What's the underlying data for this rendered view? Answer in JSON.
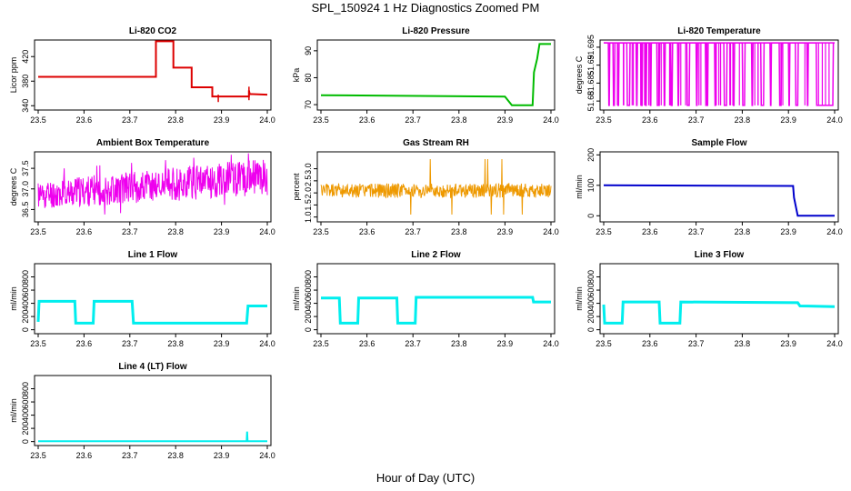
{
  "title": "SPL_150924  1 Hz Diagnostics Zoomed PM",
  "xlabel": "Hour of Day (UTC)",
  "colors": {
    "red": "#dd0000",
    "green": "#00bb00",
    "magenta": "#ee00ee",
    "orange": "#ee9900",
    "blue": "#0000cc",
    "cyan": "#00eeee"
  },
  "chart_data": [
    {
      "id": "co2",
      "type": "line",
      "title": "Li-820 CO2",
      "ylabel": "Licor ppm",
      "color": "red",
      "xlim": [
        23.5,
        24.0
      ],
      "xticks": [
        23.5,
        23.6,
        23.7,
        23.8,
        23.9,
        24.0
      ],
      "ylim": [
        333,
        447
      ],
      "yticks": [
        340,
        380,
        420
      ],
      "series": [
        {
          "name": "CO2",
          "x": [
            23.5,
            23.757,
            23.757,
            23.795,
            23.795,
            23.835,
            23.835,
            23.88,
            23.88,
            23.96,
            23.96,
            23.962,
            23.962,
            24.0
          ],
          "y": [
            387,
            387,
            445,
            445,
            402,
            402,
            370,
            370,
            355,
            355,
            365,
            358,
            359,
            358
          ]
        }
      ],
      "spikes": [
        {
          "x": 23.96,
          "lo": 349,
          "hi": 371
        },
        {
          "x": 23.893,
          "lo": 346,
          "hi": 358
        }
      ]
    },
    {
      "id": "pressure",
      "type": "line",
      "title": "Li-820 Pressure",
      "ylabel": "kPa",
      "color": "green",
      "xlim": [
        23.5,
        24.0
      ],
      "xticks": [
        23.5,
        23.6,
        23.7,
        23.8,
        23.9,
        24.0
      ],
      "ylim": [
        68,
        94
      ],
      "yticks": [
        70,
        80,
        90
      ],
      "series": [
        {
          "name": "Pressure",
          "x": [
            23.5,
            23.9,
            23.915,
            23.96,
            23.963,
            23.97,
            23.975,
            24.0
          ],
          "y": [
            73.5,
            73.0,
            69.8,
            69.8,
            82,
            87,
            92.5,
            92.5
          ]
        }
      ]
    },
    {
      "id": "licor_temp",
      "type": "line",
      "title": "Li-820 Temperature",
      "ylabel": "degrees C",
      "color": "magenta",
      "xlim": [
        23.5,
        24.0
      ],
      "xticks": [
        23.5,
        23.6,
        23.7,
        23.8,
        23.9,
        24.0
      ],
      "ylim": [
        51.6775,
        51.697
      ],
      "yticks": [
        51.68,
        51.685,
        51.69,
        51.695
      ],
      "series": [
        {
          "name": "Temperature",
          "binary": true,
          "high": 51.6962,
          "low": 51.6788,
          "x_transitions": [
            23.51,
            23.512,
            23.52,
            23.523,
            23.53,
            23.532,
            23.55,
            23.556,
            23.57,
            23.572,
            23.58,
            23.583,
            23.59,
            23.592,
            23.6,
            23.602,
            23.615,
            23.62,
            23.63,
            23.632,
            23.645,
            23.648,
            23.66,
            23.662,
            23.68,
            23.685,
            23.7,
            23.702,
            23.72,
            23.725,
            23.74,
            23.742,
            23.76,
            23.766,
            23.78,
            23.782,
            23.8,
            23.805,
            23.82,
            23.822,
            23.84,
            23.846,
            23.86,
            23.862,
            23.88,
            23.884,
            23.9,
            23.902,
            23.915,
            23.92,
            23.94,
            23.942,
            23.96,
            23.996
          ]
        }
      ]
    },
    {
      "id": "box_temp",
      "type": "noise",
      "title": "Ambient Box Temperature",
      "ylabel": "degrees C",
      "color": "magenta",
      "xlim": [
        23.5,
        24.0
      ],
      "xticks": [
        23.5,
        23.6,
        23.7,
        23.8,
        23.9,
        24.0
      ],
      "ylim": [
        36.2,
        37.9
      ],
      "yticks": [
        36.5,
        37.0,
        37.5
      ],
      "series": [
        {
          "name": "Box Temp",
          "x": [
            23.5,
            24.0
          ],
          "mean_start": 36.85,
          "mean_end": 37.3,
          "amp_start": 0.35,
          "amp_end": 0.45,
          "seed": 11
        }
      ]
    },
    {
      "id": "rh",
      "type": "noise",
      "title": "Gas Stream RH",
      "ylabel": "percent",
      "color": "orange",
      "xlim": [
        23.5,
        24.0
      ],
      "xticks": [
        23.5,
        23.6,
        23.7,
        23.8,
        23.9,
        24.0
      ],
      "ylim": [
        0.8,
        3.7
      ],
      "yticks": [
        1.0,
        1.5,
        2.0,
        2.5,
        3.0
      ],
      "series": [
        {
          "name": "RH",
          "x": [
            23.5,
            24.0
          ],
          "mean_start": 2.1,
          "mean_end": 2.1,
          "amp_start": 0.3,
          "amp_end": 0.3,
          "seed": 5
        }
      ]
    },
    {
      "id": "sample_flow",
      "type": "line",
      "title": "Sample Flow",
      "ylabel": "ml/min",
      "color": "blue",
      "xlim": [
        23.5,
        24.0
      ],
      "xticks": [
        23.5,
        23.6,
        23.7,
        23.8,
        23.9,
        24.0
      ],
      "ylim": [
        -20,
        210
      ],
      "yticks": [
        0,
        100,
        200
      ],
      "series": [
        {
          "name": "Sample Flow",
          "x": [
            23.5,
            23.91,
            23.912,
            23.92,
            23.925,
            24.0
          ],
          "y": [
            100,
            98,
            60,
            0,
            0,
            0
          ]
        }
      ]
    },
    {
      "id": "line1",
      "type": "line",
      "title": "Line 1 Flow",
      "ylabel": "ml/min",
      "color": "cyan",
      "xlim": [
        23.5,
        24.0
      ],
      "xticks": [
        23.5,
        23.6,
        23.7,
        23.8,
        23.9,
        24.0
      ],
      "ylim": [
        -60,
        1000
      ],
      "yticks": [
        0,
        200,
        400,
        600,
        800
      ],
      "series": [
        {
          "name": "Line 1",
          "x": [
            23.5,
            23.502,
            23.58,
            23.582,
            23.62,
            23.622,
            23.705,
            23.708,
            23.955,
            23.958,
            24.0
          ],
          "y": [
            120,
            430,
            430,
            100,
            100,
            430,
            430,
            100,
            100,
            360,
            360
          ]
        }
      ]
    },
    {
      "id": "line2",
      "type": "line",
      "title": "Line 2 Flow",
      "ylabel": "ml/min",
      "color": "cyan",
      "xlim": [
        23.5,
        24.0
      ],
      "xticks": [
        23.5,
        23.6,
        23.7,
        23.8,
        23.9,
        24.0
      ],
      "ylim": [
        -60,
        1000
      ],
      "yticks": [
        0,
        200,
        400,
        600,
        800
      ],
      "series": [
        {
          "name": "Line 2",
          "x": [
            23.5,
            23.54,
            23.542,
            23.58,
            23.582,
            23.665,
            23.667,
            23.705,
            23.707,
            23.96,
            23.962,
            24.0
          ],
          "y": [
            480,
            480,
            100,
            100,
            480,
            480,
            100,
            100,
            490,
            490,
            420,
            420
          ]
        }
      ]
    },
    {
      "id": "line3",
      "type": "line",
      "title": "Line 3 Flow",
      "ylabel": "ml/min",
      "color": "cyan",
      "xlim": [
        23.5,
        24.0
      ],
      "xticks": [
        23.5,
        23.6,
        23.7,
        23.8,
        23.9,
        24.0
      ],
      "ylim": [
        -60,
        1000
      ],
      "yticks": [
        0,
        200,
        400,
        600,
        800
      ],
      "series": [
        {
          "name": "Line 3",
          "x": [
            23.5,
            23.502,
            23.54,
            23.542,
            23.62,
            23.622,
            23.665,
            23.667,
            23.92,
            23.925,
            24.0
          ],
          "y": [
            380,
            100,
            100,
            420,
            420,
            100,
            100,
            420,
            410,
            360,
            350
          ]
        }
      ]
    },
    {
      "id": "line4",
      "type": "line",
      "title": "Line 4 (LT) Flow",
      "ylabel": "ml/min",
      "color": "cyan",
      "xlim": [
        23.5,
        24.0
      ],
      "xticks": [
        23.5,
        23.6,
        23.7,
        23.8,
        23.9,
        24.0
      ],
      "ylim": [
        -60,
        1000
      ],
      "yticks": [
        0,
        200,
        400,
        600,
        800
      ],
      "series": [
        {
          "name": "Line 4",
          "x": [
            23.5,
            23.955,
            23.956,
            23.957,
            24.0
          ],
          "y": [
            5,
            5,
            150,
            5,
            5
          ]
        }
      ]
    }
  ]
}
